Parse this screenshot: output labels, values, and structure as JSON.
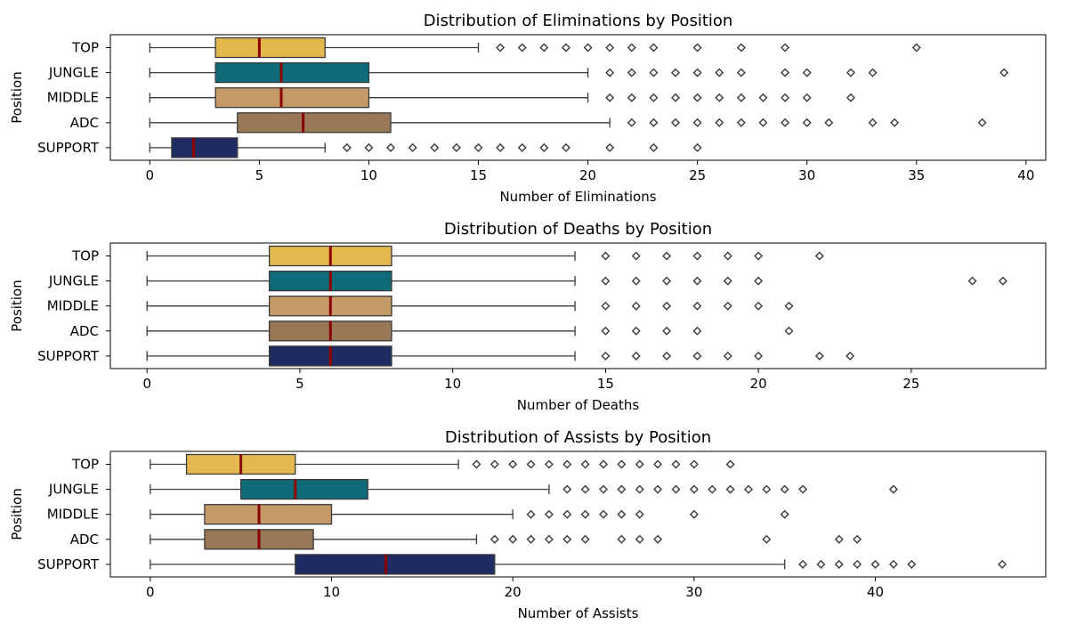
{
  "chart_data": [
    {
      "type": "boxplot",
      "orientation": "horizontal",
      "title": "Distribution of Eliminations by Position",
      "xlabel": "Number of Eliminations",
      "ylabel": "Position",
      "xlim": [
        -1.8,
        40.9
      ],
      "xticks": [
        0,
        5,
        10,
        15,
        20,
        25,
        30,
        35,
        40
      ],
      "categories": [
        "TOP",
        "JUNGLE",
        "MIDDLE",
        "ADC",
        "SUPPORT"
      ],
      "boxes": [
        {
          "category": "TOP",
          "min": 0,
          "q1": 3,
          "median": 5,
          "q3": 8,
          "max": 15,
          "outliers": [
            16,
            17,
            18,
            19,
            20,
            21,
            22,
            23,
            25,
            27,
            29,
            35
          ]
        },
        {
          "category": "JUNGLE",
          "min": 0,
          "q1": 3,
          "median": 6,
          "q3": 10,
          "max": 20,
          "outliers": [
            21,
            22,
            23,
            24,
            25,
            26,
            27,
            29,
            30,
            32,
            33,
            39
          ]
        },
        {
          "category": "MIDDLE",
          "min": 0,
          "q1": 3,
          "median": 6,
          "q3": 10,
          "max": 20,
          "outliers": [
            21,
            22,
            23,
            24,
            25,
            26,
            27,
            28,
            29,
            30,
            32
          ]
        },
        {
          "category": "ADC",
          "min": 0,
          "q1": 4,
          "median": 7,
          "q3": 11,
          "max": 21,
          "outliers": [
            22,
            23,
            24,
            25,
            26,
            27,
            28,
            29,
            30,
            31,
            33,
            34,
            38
          ]
        },
        {
          "category": "SUPPORT",
          "min": 0,
          "q1": 1,
          "median": 2,
          "q3": 4,
          "max": 8,
          "outliers": [
            9,
            10,
            11,
            12,
            13,
            14,
            15,
            16,
            17,
            18,
            19,
            21,
            23,
            25
          ]
        }
      ]
    },
    {
      "type": "boxplot",
      "orientation": "horizontal",
      "title": "Distribution of Deaths by Position",
      "xlabel": "Number of Deaths",
      "ylabel": "Position",
      "xlim": [
        -1.2,
        29.4
      ],
      "xticks": [
        0,
        5,
        10,
        15,
        20,
        25
      ],
      "categories": [
        "TOP",
        "JUNGLE",
        "MIDDLE",
        "ADC",
        "SUPPORT"
      ],
      "boxes": [
        {
          "category": "TOP",
          "min": 0,
          "q1": 4,
          "median": 6,
          "q3": 8,
          "max": 14,
          "outliers": [
            15,
            16,
            17,
            18,
            19,
            20,
            22
          ]
        },
        {
          "category": "JUNGLE",
          "min": 0,
          "q1": 4,
          "median": 6,
          "q3": 8,
          "max": 14,
          "outliers": [
            15,
            16,
            17,
            18,
            19,
            20,
            27,
            28
          ]
        },
        {
          "category": "MIDDLE",
          "min": 0,
          "q1": 4,
          "median": 6,
          "q3": 8,
          "max": 14,
          "outliers": [
            15,
            16,
            17,
            18,
            19,
            20,
            21
          ]
        },
        {
          "category": "ADC",
          "min": 0,
          "q1": 4,
          "median": 6,
          "q3": 8,
          "max": 14,
          "outliers": [
            15,
            16,
            17,
            18,
            21
          ]
        },
        {
          "category": "SUPPORT",
          "min": 0,
          "q1": 4,
          "median": 6,
          "q3": 8,
          "max": 14,
          "outliers": [
            15,
            16,
            17,
            18,
            19,
            20,
            22,
            23
          ]
        }
      ]
    },
    {
      "type": "boxplot",
      "orientation": "horizontal",
      "title": "Distribution of Assists by Position",
      "xlabel": "Number of Assists",
      "ylabel": "Position",
      "xlim": [
        -2.2,
        49.4
      ],
      "xticks": [
        0,
        10,
        20,
        30,
        40
      ],
      "categories": [
        "TOP",
        "JUNGLE",
        "MIDDLE",
        "ADC",
        "SUPPORT"
      ],
      "boxes": [
        {
          "category": "TOP",
          "min": 0,
          "q1": 2,
          "median": 5,
          "q3": 8,
          "max": 17,
          "outliers": [
            18,
            19,
            20,
            21,
            22,
            23,
            24,
            25,
            26,
            27,
            28,
            29,
            30,
            32
          ]
        },
        {
          "category": "JUNGLE",
          "min": 0,
          "q1": 5,
          "median": 8,
          "q3": 12,
          "max": 22,
          "outliers": [
            23,
            24,
            25,
            26,
            27,
            28,
            29,
            30,
            31,
            32,
            33,
            34,
            35,
            36,
            41
          ]
        },
        {
          "category": "MIDDLE",
          "min": 0,
          "q1": 3,
          "median": 6,
          "q3": 10,
          "max": 20,
          "outliers": [
            21,
            22,
            23,
            24,
            25,
            26,
            27,
            30,
            35
          ]
        },
        {
          "category": "ADC",
          "min": 0,
          "q1": 3,
          "median": 6,
          "q3": 9,
          "max": 18,
          "outliers": [
            19,
            20,
            21,
            22,
            23,
            24,
            26,
            27,
            28,
            34,
            38,
            39
          ]
        },
        {
          "category": "SUPPORT",
          "min": 0,
          "q1": 8,
          "median": 13,
          "q3": 19,
          "max": 35,
          "outliers": [
            36,
            37,
            38,
            39,
            40,
            41,
            42,
            47
          ]
        }
      ]
    }
  ],
  "colors": {
    "TOP": "#e3b94f",
    "JUNGLE": "#0f6b7a",
    "MIDDLE": "#c49a68",
    "ADC": "#987857",
    "SUPPORT": "#1f2c62",
    "median": "#8b0000"
  }
}
